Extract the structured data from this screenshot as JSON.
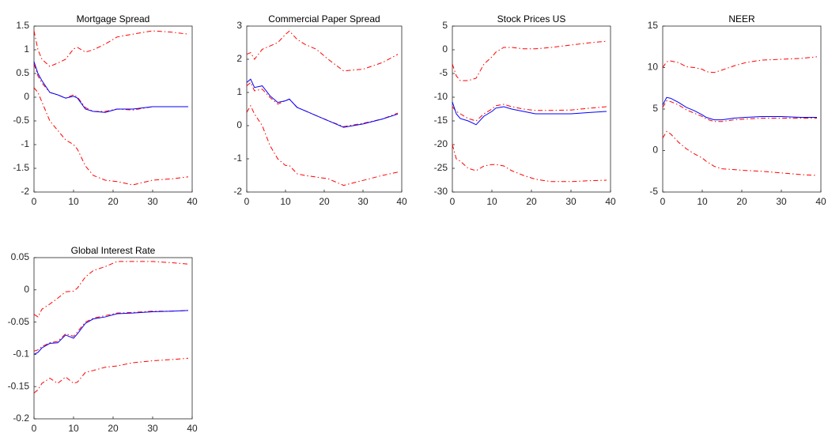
{
  "chart_data": [
    {
      "type": "line",
      "title": "Mortgage Spread",
      "x": [
        0,
        1,
        2,
        4,
        6,
        8,
        10,
        11,
        13,
        15,
        18,
        21,
        25,
        30,
        35,
        39
      ],
      "xlim": [
        0,
        40
      ],
      "xticks": [
        0,
        10,
        20,
        30,
        40
      ],
      "ylim": [
        -2,
        1.5
      ],
      "yticks": [
        -2,
        -1.5,
        -1,
        -0.5,
        0,
        0.5,
        1,
        1.5
      ],
      "series": [
        {
          "color": "#ff0000",
          "style": "dashdot",
          "values": [
            1.4,
            1.0,
            0.8,
            0.65,
            0.72,
            0.8,
            1.02,
            1.05,
            0.95,
            1.0,
            1.12,
            1.27,
            1.33,
            1.4,
            1.37,
            1.33
          ]
        },
        {
          "color": "#ff0000",
          "style": "dashdot",
          "values": [
            0.2,
            0.1,
            -0.1,
            -0.5,
            -0.7,
            -0.9,
            -1.0,
            -1.1,
            -1.45,
            -1.65,
            -1.75,
            -1.78,
            -1.85,
            -1.75,
            -1.72,
            -1.68
          ]
        },
        {
          "color": "#ff0000",
          "style": "dashdot",
          "values": [
            0.7,
            0.45,
            0.3,
            0.1,
            0.05,
            -0.02,
            0.05,
            0,
            -0.22,
            -0.3,
            -0.3,
            -0.25,
            -0.27,
            -0.2,
            -0.2,
            -0.2
          ]
        },
        {
          "color": "#0000ff",
          "style": "solid",
          "values": [
            0.75,
            0.5,
            0.35,
            0.1,
            0.05,
            -0.02,
            0.02,
            -0.02,
            -0.25,
            -0.3,
            -0.32,
            -0.25,
            -0.25,
            -0.2,
            -0.2,
            -0.2
          ]
        }
      ]
    },
    {
      "type": "line",
      "title": "Commercial Paper Spread",
      "x": [
        0,
        1,
        2,
        4,
        6,
        8,
        10,
        11,
        13,
        15,
        18,
        21,
        25,
        30,
        35,
        39
      ],
      "xlim": [
        0,
        40
      ],
      "xticks": [
        0,
        10,
        20,
        30,
        40
      ],
      "ylim": [
        -2,
        3
      ],
      "yticks": [
        -2,
        -1,
        0,
        1,
        2,
        3
      ],
      "series": [
        {
          "color": "#ff0000",
          "style": "dashdot",
          "values": [
            2.15,
            2.2,
            2.0,
            2.3,
            2.4,
            2.5,
            2.75,
            2.85,
            2.6,
            2.45,
            2.3,
            2.0,
            1.65,
            1.7,
            1.9,
            2.15
          ]
        },
        {
          "color": "#ff0000",
          "style": "dashdot",
          "values": [
            0.4,
            0.6,
            0.35,
            0.0,
            -0.6,
            -1.0,
            -1.2,
            -1.2,
            -1.45,
            -1.5,
            -1.55,
            -1.6,
            -1.8,
            -1.65,
            -1.5,
            -1.4
          ]
        },
        {
          "color": "#ff0000",
          "style": "dashdot",
          "values": [
            1.2,
            1.3,
            1.05,
            1.1,
            0.85,
            0.65,
            0.75,
            0.8,
            0.55,
            0.45,
            0.3,
            0.15,
            -0.03,
            0.07,
            0.2,
            0.38
          ]
        },
        {
          "color": "#0000ff",
          "style": "solid",
          "values": [
            1.3,
            1.4,
            1.15,
            1.2,
            0.9,
            0.7,
            0.75,
            0.8,
            0.55,
            0.45,
            0.3,
            0.15,
            -0.05,
            0.05,
            0.2,
            0.35
          ]
        }
      ]
    },
    {
      "type": "line",
      "title": "Stock Prices US",
      "x": [
        0,
        1,
        2,
        4,
        6,
        8,
        10,
        11,
        13,
        15,
        18,
        21,
        25,
        30,
        35,
        39
      ],
      "xlim": [
        0,
        40
      ],
      "xticks": [
        0,
        10,
        20,
        30,
        40
      ],
      "ylim": [
        -30,
        5
      ],
      "yticks": [
        -30,
        -25,
        -20,
        -15,
        -10,
        -5,
        0,
        5
      ],
      "series": [
        {
          "color": "#ff0000",
          "style": "dashdot",
          "values": [
            -3,
            -5.5,
            -6.5,
            -6.5,
            -6,
            -3,
            -1.5,
            -0.5,
            0.5,
            0.5,
            0.2,
            0.2,
            0.5,
            1.0,
            1.5,
            1.8
          ]
        },
        {
          "color": "#ff0000",
          "style": "dashdot",
          "values": [
            -20,
            -23,
            -23.5,
            -25,
            -25.5,
            -24.5,
            -24.2,
            -24.2,
            -24.5,
            -25.5,
            -26.5,
            -27.3,
            -27.8,
            -27.8,
            -27.6,
            -27.5
          ]
        },
        {
          "color": "#ff0000",
          "style": "dashdot",
          "values": [
            -12,
            -13,
            -13.5,
            -14.5,
            -15,
            -13.5,
            -12.5,
            -11.8,
            -11.5,
            -12,
            -12.5,
            -12.8,
            -12.8,
            -12.7,
            -12.3,
            -12
          ]
        },
        {
          "color": "#0000ff",
          "style": "solid",
          "values": [
            -11,
            -13.5,
            -14.5,
            -15,
            -15.8,
            -14,
            -13,
            -12.3,
            -12,
            -12.5,
            -13,
            -13.5,
            -13.5,
            -13.5,
            -13.2,
            -13
          ]
        }
      ]
    },
    {
      "type": "line",
      "title": "NEER",
      "x": [
        0,
        1,
        2,
        4,
        6,
        8,
        10,
        11,
        13,
        15,
        18,
        21,
        25,
        30,
        35,
        39
      ],
      "xlim": [
        0,
        40
      ],
      "xticks": [
        0,
        10,
        20,
        30,
        40
      ],
      "ylim": [
        -5,
        15
      ],
      "yticks": [
        -5,
        0,
        5,
        10,
        15
      ],
      "series": [
        {
          "color": "#ff0000",
          "style": "dashdot",
          "values": [
            10,
            10.7,
            10.8,
            10.6,
            10.1,
            10.0,
            9.8,
            9.5,
            9.4,
            9.7,
            10.2,
            10.6,
            10.9,
            11.0,
            11.1,
            11.3
          ]
        },
        {
          "color": "#ff0000",
          "style": "dashdot",
          "values": [
            1.5,
            2.3,
            2.0,
            1.0,
            0.2,
            -0.4,
            -0.9,
            -1.3,
            -1.9,
            -2.2,
            -2.3,
            -2.4,
            -2.5,
            -2.7,
            -2.9,
            -3.0
          ]
        },
        {
          "color": "#ff0000",
          "style": "dashdot",
          "values": [
            5.2,
            6.0,
            5.9,
            5.5,
            4.9,
            4.5,
            4.1,
            3.8,
            3.5,
            3.5,
            3.7,
            3.8,
            3.9,
            3.9,
            3.9,
            3.9
          ]
        },
        {
          "color": "#0000ff",
          "style": "solid",
          "values": [
            5.5,
            6.4,
            6.3,
            5.8,
            5.2,
            4.8,
            4.3,
            4.0,
            3.7,
            3.7,
            3.9,
            4.0,
            4.1,
            4.1,
            4.0,
            4.0
          ]
        }
      ]
    },
    {
      "type": "line",
      "title": "Global Interest Rate",
      "x": [
        0,
        1,
        2,
        4,
        6,
        8,
        10,
        11,
        13,
        15,
        18,
        21,
        25,
        30,
        35,
        39
      ],
      "xlim": [
        0,
        40
      ],
      "xticks": [
        0,
        10,
        20,
        30,
        40
      ],
      "ylim": [
        -0.2,
        0.05
      ],
      "yticks": [
        -0.2,
        -0.15,
        -0.1,
        -0.05,
        0,
        0.05
      ],
      "series": [
        {
          "color": "#ff0000",
          "style": "dashdot",
          "values": [
            -0.038,
            -0.042,
            -0.03,
            -0.022,
            -0.013,
            -0.003,
            -0.002,
            0.003,
            0.02,
            0.03,
            0.036,
            0.044,
            0.044,
            0.044,
            0.042,
            0.04
          ]
        },
        {
          "color": "#ff0000",
          "style": "dashdot",
          "values": [
            -0.16,
            -0.155,
            -0.145,
            -0.137,
            -0.145,
            -0.135,
            -0.145,
            -0.143,
            -0.128,
            -0.125,
            -0.12,
            -0.118,
            -0.113,
            -0.11,
            -0.108,
            -0.106
          ]
        },
        {
          "color": "#ff0000",
          "style": "dashdot",
          "values": [
            -0.095,
            -0.093,
            -0.088,
            -0.082,
            -0.08,
            -0.068,
            -0.072,
            -0.065,
            -0.05,
            -0.044,
            -0.04,
            -0.036,
            -0.035,
            -0.033,
            -0.033,
            -0.032
          ]
        },
        {
          "color": "#0000ff",
          "style": "solid",
          "values": [
            -0.1,
            -0.097,
            -0.09,
            -0.083,
            -0.082,
            -0.07,
            -0.075,
            -0.068,
            -0.052,
            -0.045,
            -0.042,
            -0.037,
            -0.036,
            -0.034,
            -0.033,
            -0.032
          ]
        }
      ]
    }
  ]
}
